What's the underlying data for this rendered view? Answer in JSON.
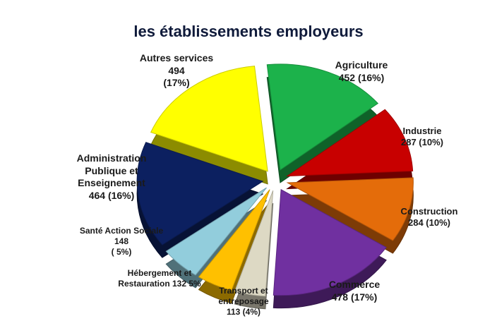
{
  "chart_data": {
    "type": "pie",
    "title": "les établissements employeurs",
    "slices": [
      {
        "label": "Agriculture",
        "value": 452,
        "pct": "16%",
        "color": "#1cb24b",
        "lines": [
          "Agriculture",
          "452 (16%)"
        ]
      },
      {
        "label": "Industrie",
        "value": 287,
        "pct": "10%",
        "color": "#c80000",
        "lines": [
          "Industrie",
          "287 (10%)"
        ]
      },
      {
        "label": "Construction",
        "value": 284,
        "pct": "10%",
        "color": "#e46c0a",
        "lines": [
          "Construction",
          "284 (10%)"
        ]
      },
      {
        "label": "Commerce",
        "value": 478,
        "pct": "17%",
        "color": "#7030a0",
        "lines": [
          "Commerce",
          "478 (17%)"
        ]
      },
      {
        "label": "Transport et entreposage",
        "value": 113,
        "pct": "4%",
        "color": "#ddd9c4",
        "lines": [
          "Transport et",
          "entreposage",
          "113 (4%)"
        ]
      },
      {
        "label": "Hébergement et Restauration",
        "value": 132,
        "pct": "5%",
        "color": "#ffc000",
        "lines": [
          "Hébergement et",
          "Restauration   132 5%"
        ]
      },
      {
        "label": "Santé Action Sociale",
        "value": 148,
        "pct": "5%",
        "color": "#92cddc",
        "lines": [
          "Santé Action Sociale",
          "148",
          "( 5%)"
        ]
      },
      {
        "label": "Administration Publique et Enseignement",
        "value": 464,
        "pct": "16%",
        "color": "#0c2060",
        "lines": [
          "Administration",
          "Publique et",
          "Enseignement",
          "464 (16%)"
        ]
      },
      {
        "label": "Autres services",
        "value": 494,
        "pct": "17%",
        "color": "#ffff00",
        "lines": [
          "Autres services",
          "494",
          "(17%)"
        ]
      }
    ]
  }
}
